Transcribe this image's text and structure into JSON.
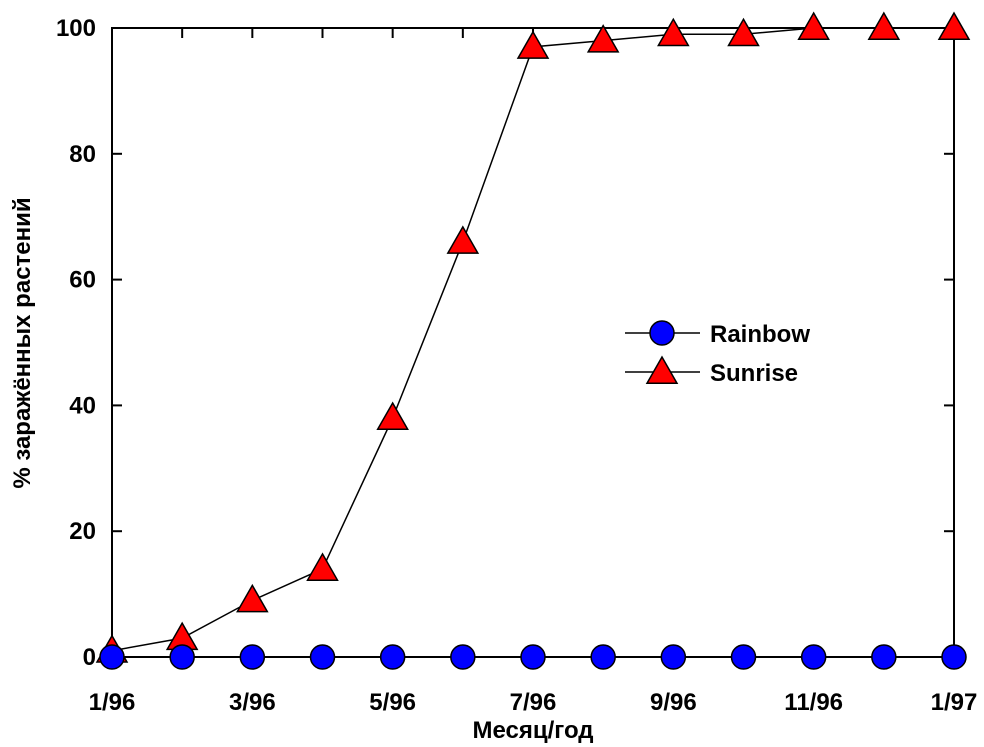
{
  "chart_data": {
    "type": "line",
    "title": "",
    "xlabel": "Месяц/год",
    "ylabel": "% заражённых растений",
    "ylim": [
      0,
      100
    ],
    "yticks": [
      "0",
      "20",
      "40",
      "60",
      "80",
      "100"
    ],
    "x_positions": 13,
    "x_tick_labels": [
      "1/96",
      "",
      "3/96",
      "",
      "5/96",
      "",
      "7/96",
      "",
      "9/96",
      "",
      "11/96",
      "",
      "1/97"
    ],
    "grid": false,
    "legend_position": "center-right",
    "series": [
      {
        "name": "Rainbow",
        "marker": "circle",
        "color": "#0000ff",
        "values": [
          0,
          0,
          0,
          0,
          0,
          0,
          0,
          0,
          0,
          0,
          0,
          0,
          0
        ]
      },
      {
        "name": "Sunrise",
        "marker": "triangle",
        "color": "#ff0000",
        "values": [
          1,
          3,
          9,
          14,
          38,
          66,
          97,
          98,
          99,
          99,
          100,
          100,
          100
        ]
      }
    ]
  }
}
